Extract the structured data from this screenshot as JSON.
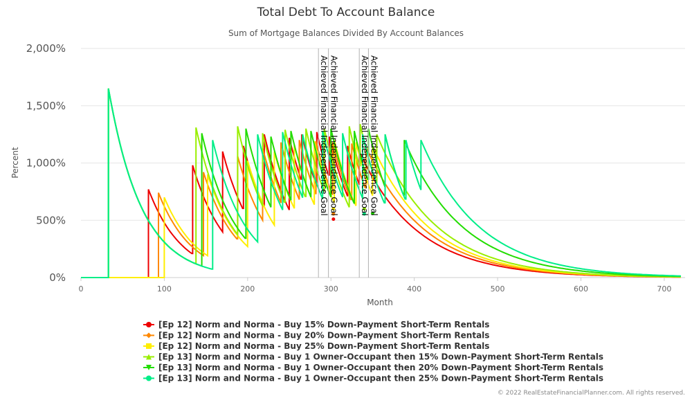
{
  "chart_data": {
    "type": "line",
    "title": "Total Debt To Account Balance",
    "subtitle": "Sum of Mortgage Balances Divided By Account Balances",
    "xlabel": "Month",
    "ylabel": "Percent",
    "xlim": [
      0,
      725
    ],
    "ylim": [
      0,
      2000
    ],
    "xticks": [
      "0",
      "100",
      "200",
      "300",
      "400",
      "500",
      "600",
      "700"
    ],
    "yticks": [
      "0%",
      "500%",
      "1,000%",
      "1,500%",
      "2,000%"
    ],
    "grid": "horizontal",
    "legend_position": "bottom-left",
    "annotations": [
      {
        "month": 285,
        "text": "Achieved Financial Independence Goal"
      },
      {
        "month": 297,
        "text": "Achieved Financial Independence Goal"
      },
      {
        "month": 334,
        "text": "Achieved Financial Independence Goal"
      },
      {
        "month": 345,
        "text": "Achieved Financial Independence Goal"
      }
    ],
    "series": [
      {
        "name": "[Ep 12] Norm and Norma - Buy 15% Down-Payment Short-Term Rentals",
        "color": "#ee0000",
        "marker": "circle",
        "start": 81,
        "jumps": [
          [
            81,
            770
          ],
          [
            134,
            980
          ],
          [
            170,
            1100
          ],
          [
            195,
            1150
          ],
          [
            220,
            1250
          ],
          [
            250,
            1220
          ],
          [
            265,
            1250
          ],
          [
            283,
            1270
          ],
          [
            298,
            1230
          ],
          [
            320,
            1150
          ],
          [
            334,
            1100
          ]
        ],
        "goal_point": [
          303,
          510
        ]
      },
      {
        "name": "[Ep 12] Norm and Norma - Buy 20% Down-Payment Short-Term Rentals",
        "color": "#ff8800",
        "marker": "diamond",
        "start": 93,
        "jumps": [
          [
            93,
            740
          ],
          [
            147,
            920
          ],
          [
            188,
            1060
          ],
          [
            218,
            1130
          ],
          [
            240,
            1180
          ],
          [
            262,
            1200
          ],
          [
            282,
            1190
          ],
          [
            302,
            1180
          ],
          [
            325,
            1170
          ],
          [
            342,
            1140
          ]
        ],
        "goal_point": [
          303,
          555
        ]
      },
      {
        "name": "[Ep 12] Norm and Norma - Buy 25% Down-Payment Short-Term Rentals",
        "color": "#ffee00",
        "marker": "square",
        "start": 100,
        "jumps": [
          [
            100,
            700
          ],
          [
            152,
            900
          ],
          [
            200,
            1020
          ],
          [
            232,
            1100
          ],
          [
            256,
            1160
          ],
          [
            280,
            1190
          ],
          [
            304,
            1200
          ],
          [
            330,
            1180
          ],
          [
            350,
            1150
          ]
        ],
        "goal_point": [
          303,
          600
        ]
      },
      {
        "name": "[Ep 13] Norm and Norma - Buy 1 Owner-Occupant then 15% Down-Payment Short-Term Rentals",
        "color": "#99ee00",
        "marker": "triangle",
        "start": 33,
        "jumps": [
          [
            33,
            1650
          ],
          [
            138,
            1310
          ],
          [
            188,
            1320
          ],
          [
            218,
            1260
          ],
          [
            245,
            1290
          ],
          [
            270,
            1300
          ],
          [
            292,
            1300
          ],
          [
            322,
            1320
          ],
          [
            335,
            1340
          ],
          [
            355,
            1250
          ]
        ],
        "goal_point": [
          340,
          600
        ]
      },
      {
        "name": "[Ep 13] Norm and Norma - Buy 1 Owner-Occupant then 20% Down-Payment Short-Term Rentals",
        "color": "#22dd00",
        "marker": "triangle-down",
        "start": 33,
        "jumps": [
          [
            33,
            1650
          ],
          [
            145,
            1260
          ],
          [
            198,
            1300
          ],
          [
            228,
            1230
          ],
          [
            252,
            1280
          ],
          [
            276,
            1280
          ],
          [
            300,
            1300
          ],
          [
            328,
            1280
          ],
          [
            345,
            1300
          ],
          [
            365,
            1250
          ],
          [
            388,
            1200
          ]
        ],
        "goal_point": [
          350,
          560
        ]
      },
      {
        "name": "[Ep 13] Norm and Norma - Buy 1 Owner-Occupant then 25% Down-Payment Short-Term Rentals",
        "color": "#00ee88",
        "marker": "circle",
        "start": 33,
        "jumps": [
          [
            33,
            1650
          ],
          [
            158,
            1200
          ],
          [
            212,
            1250
          ],
          [
            242,
            1270
          ],
          [
            266,
            1250
          ],
          [
            290,
            1280
          ],
          [
            314,
            1260
          ],
          [
            338,
            1250
          ],
          [
            365,
            1250
          ],
          [
            390,
            1200
          ],
          [
            408,
            1200
          ]
        ],
        "goal_point": [
          340,
          555
        ]
      }
    ]
  },
  "credit": "© 2022 RealEstateFinancialPlanner.com. All rights reserved."
}
